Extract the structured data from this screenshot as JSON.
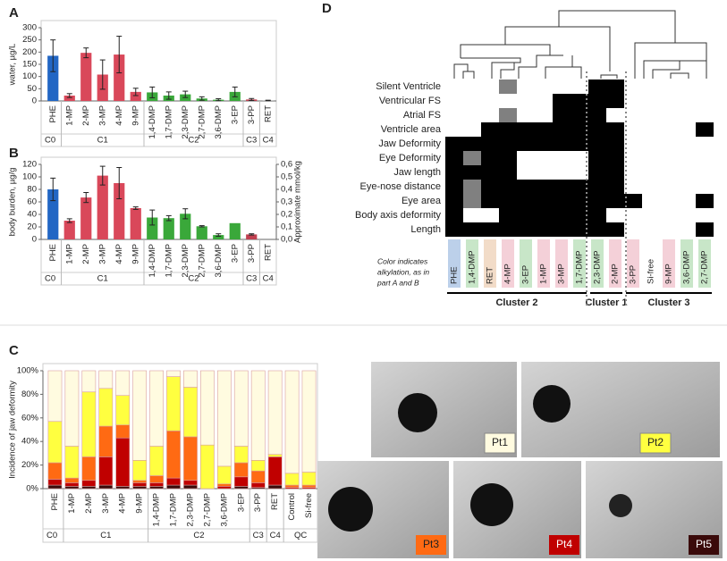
{
  "chart_data": [
    {
      "type": "bar",
      "panel": "A",
      "ylabel": "water, µg/L",
      "categories": [
        "PHE",
        "1-MP",
        "2-MP",
        "3-MP",
        "4-MP",
        "9-MP",
        "1,4-DMP",
        "1,7-DMP",
        "2,3-DMP",
        "2,7-DMP",
        "3,6-DMP",
        "3-EP",
        "3-PP",
        "RET"
      ],
      "category_groups": [
        "C0",
        "C1",
        "C1",
        "C1",
        "C1",
        "C1",
        "C2",
        "C2",
        "C2",
        "C2",
        "C2",
        "C2",
        "C3",
        "C4"
      ],
      "values": [
        185,
        22,
        197,
        108,
        190,
        37,
        35,
        22,
        27,
        10,
        5,
        37,
        6,
        2
      ],
      "errors": [
        65,
        8,
        20,
        60,
        75,
        15,
        22,
        15,
        13,
        7,
        4,
        20,
        4,
        1
      ],
      "colors": [
        "#2166c4",
        "#d9485a",
        "#d9485a",
        "#d9485a",
        "#d9485a",
        "#d9485a",
        "#3aa83a",
        "#3aa83a",
        "#3aa83a",
        "#3aa83a",
        "#3aa83a",
        "#3aa83a",
        "#c04050",
        "#999999"
      ],
      "ylim": [
        0,
        300
      ],
      "yticks": [
        0,
        50,
        100,
        150,
        200,
        250,
        300
      ]
    },
    {
      "type": "bar",
      "panel": "B",
      "ylabel": "body burden, µg/g",
      "y2label": "Approximate mmol/kg",
      "categories": [
        "PHE",
        "1-MP",
        "2-MP",
        "3-MP",
        "4-MP",
        "9-MP",
        "1,4-DMP",
        "1,7-DMP",
        "2,3-DMP",
        "2,7-DMP",
        "3,6-DMP",
        "3-EP",
        "3-PP",
        "RET"
      ],
      "category_groups": [
        "C0",
        "C1",
        "C1",
        "C1",
        "C1",
        "C1",
        "C2",
        "C2",
        "C2",
        "C2",
        "C2",
        "C2",
        "C3",
        "C4"
      ],
      "values": [
        80,
        30,
        67,
        102,
        90,
        50,
        35,
        34,
        41,
        21,
        7,
        26,
        8,
        0
      ],
      "errors": [
        18,
        3,
        8,
        15,
        25,
        2,
        12,
        4,
        8,
        1,
        2,
        null,
        1,
        null
      ],
      "colors": [
        "#2166c4",
        "#d9485a",
        "#d9485a",
        "#d9485a",
        "#d9485a",
        "#d9485a",
        "#3aa83a",
        "#3aa83a",
        "#3aa83a",
        "#3aa83a",
        "#3aa83a",
        "#3aa83a",
        "#c04050",
        "#999999"
      ],
      "ylim": [
        0,
        120
      ],
      "yticks": [
        0,
        20,
        40,
        60,
        80,
        100,
        120
      ],
      "y2lim": [
        0,
        0.6
      ],
      "y2ticks": [
        {
          "value": 0,
          "label": "0,0"
        },
        {
          "value": 0.1,
          "label": "0,1"
        },
        {
          "value": 0.2,
          "label": "0,2"
        },
        {
          "value": 0.3,
          "label": "0,3"
        },
        {
          "value": 0.4,
          "label": "0,4"
        },
        {
          "value": 0.5,
          "label": "0,5"
        },
        {
          "value": 0.6,
          "label": "0,6"
        }
      ]
    },
    {
      "type": "stacked_bar",
      "panel": "C",
      "ylabel": "Incidence of jaw deformity",
      "categories": [
        "PHE",
        "1-MP",
        "2-MP",
        "3-MP",
        "4-MP",
        "9-MP",
        "1,4-DMP",
        "1,7-DMP",
        "2,3-DMP",
        "2,7-DMP",
        "3,6-DMP",
        "3-EP",
        "3-PP",
        "RET",
        "Control",
        "Si-free"
      ],
      "category_groups": [
        "C0",
        "C1",
        "C1",
        "C1",
        "C1",
        "C1",
        "C2",
        "C2",
        "C2",
        "C2",
        "C2",
        "C2",
        "C3",
        "C4",
        "QC",
        "QC"
      ],
      "series": [
        {
          "name": "Pt5",
          "color": "#3a0a0a",
          "values": [
            3,
            2,
            2,
            3,
            2,
            2,
            2,
            3,
            3,
            0,
            0,
            2,
            1,
            3,
            0,
            0
          ]
        },
        {
          "name": "Pt4",
          "color": "#c00000",
          "values": [
            5,
            3,
            5,
            24,
            41,
            3,
            3,
            6,
            4,
            0,
            2,
            8,
            4,
            24,
            1,
            1
          ]
        },
        {
          "name": "Pt3",
          "color": "#ff6a13",
          "values": [
            14,
            4,
            20,
            26,
            11,
            2,
            6,
            40,
            37,
            0,
            2,
            12,
            10,
            0,
            2,
            2
          ]
        },
        {
          "name": "Pt2",
          "color": "#ffff40",
          "values": [
            35,
            27,
            55,
            32,
            25,
            17,
            25,
            46,
            42,
            37,
            15,
            14,
            9,
            2,
            10,
            11
          ]
        },
        {
          "name": "Pt1",
          "color": "#fffbe0",
          "values": [
            43,
            64,
            18,
            15,
            21,
            76,
            64,
            5,
            14,
            63,
            81,
            64,
            76,
            71,
            87,
            86
          ]
        }
      ],
      "ylim": [
        0,
        100
      ],
      "yticks": [
        {
          "value": 0,
          "label": "0%"
        },
        {
          "value": 20,
          "label": "20%"
        },
        {
          "value": 40,
          "label": "40%"
        },
        {
          "value": 60,
          "label": "60%"
        },
        {
          "value": 80,
          "label": "80%"
        },
        {
          "value": 100,
          "label": "100%"
        }
      ]
    },
    {
      "type": "heatmap",
      "panel": "D",
      "rows": [
        "Silent Ventricle",
        "Ventricular FS",
        "Atrial FS",
        "Ventricle area",
        "Jaw Deformity",
        "Eye Deformity",
        "Jaw length",
        "Eye-nose distance",
        "Eye area",
        "Body axis deformity",
        "Length"
      ],
      "columns": [
        "PHE",
        "1,4-DMP",
        "RET",
        "4-MP",
        "3-EP",
        "1-MP",
        "3-MP",
        "1,7-DMP",
        "2,3-DMP",
        "2-MP",
        "3-PP",
        "Si-free",
        "9-MP",
        "3,6-DMP",
        "2,7-DMP"
      ],
      "column_colors": [
        "#bcd0ea",
        "#c8e6c8",
        "#f2dcc8",
        "#f4d0d8",
        "#c8e6c8",
        "#f4d0d8",
        "#f4d0d8",
        "#c8e6c8",
        "#c8e6c8",
        "#f4d0d8",
        "#f4d0d8",
        null,
        "#f4d0d8",
        "#c8e6c8",
        "#c8e6c8"
      ],
      "column_clusters": [
        "Cluster 2",
        "Cluster 2",
        "Cluster 2",
        "Cluster 2",
        "Cluster 2",
        "Cluster 2",
        "Cluster 2",
        "Cluster 2",
        "Cluster 1",
        "Cluster 1",
        "Cluster 3",
        "Cluster 3",
        "Cluster 3",
        "Cluster 3",
        "Cluster 3"
      ],
      "values": [
        [
          0,
          0,
          0,
          0.5,
          0,
          0,
          0,
          0,
          1,
          1,
          0,
          0,
          0,
          0,
          0
        ],
        [
          0,
          0,
          0,
          0,
          0,
          0,
          1,
          1,
          1,
          1,
          0,
          0,
          0,
          0,
          0
        ],
        [
          0,
          0,
          0,
          0.5,
          0,
          0,
          1,
          1,
          1,
          0,
          0,
          0,
          0,
          0,
          0
        ],
        [
          0,
          0,
          1,
          1,
          1,
          1,
          1,
          1,
          1,
          1,
          0,
          0,
          0,
          0,
          1
        ],
        [
          1,
          1,
          1,
          1,
          1,
          1,
          1,
          1,
          1,
          1,
          0,
          0,
          0,
          0,
          0
        ],
        [
          1,
          0.5,
          1,
          1,
          0,
          0,
          0,
          0,
          1,
          1,
          0,
          0,
          0,
          0,
          0
        ],
        [
          1,
          1,
          1,
          1,
          0,
          0,
          0,
          0,
          1,
          1,
          0,
          0,
          0,
          0,
          0
        ],
        [
          1,
          0.5,
          1,
          1,
          1,
          1,
          1,
          1,
          1,
          1,
          0,
          0,
          0,
          0,
          0
        ],
        [
          1,
          0.5,
          1,
          1,
          1,
          1,
          1,
          1,
          1,
          1,
          1,
          0,
          0,
          0,
          1
        ],
        [
          1,
          0,
          0,
          1,
          1,
          1,
          1,
          1,
          1,
          0,
          0,
          0,
          0,
          0,
          0
        ],
        [
          1,
          1,
          1,
          1,
          1,
          1,
          1,
          1,
          1,
          1,
          0,
          0,
          0,
          0,
          1
        ]
      ],
      "note": [
        "Color indicates",
        "alkylation, as in",
        "part A and B"
      ]
    }
  ]
}
